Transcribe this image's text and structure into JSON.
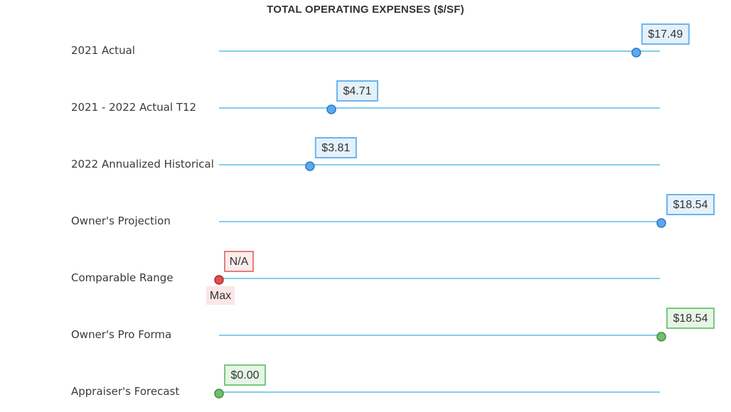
{
  "chart_data": {
    "type": "scatter",
    "title": "TOTAL OPERATING EXPENSES ($/SF)",
    "xlim": [
      0,
      18.54
    ],
    "rows": [
      {
        "label": "2021 Actual",
        "value": 17.49,
        "display": "$17.49",
        "status": "historical"
      },
      {
        "label": "2021 - 2022 Actual T12",
        "value": 4.71,
        "display": "$4.71",
        "status": "historical"
      },
      {
        "label": "2022 Annualized Historical",
        "value": 3.81,
        "display": "$3.81",
        "status": "historical"
      },
      {
        "label": "Owner's Projection",
        "value": 18.54,
        "display": "$18.54",
        "status": "historical"
      },
      {
        "label": "Comparable Range",
        "value": 0,
        "display": "N/A",
        "sublabel": "Max",
        "status": "missing"
      },
      {
        "label": "Owner's Pro Forma",
        "value": 18.54,
        "display": "$18.54",
        "status": "forecast"
      },
      {
        "label": "Appraiser's Forecast",
        "value": 0.0,
        "display": "$0.00",
        "status": "forecast"
      }
    ],
    "colors": {
      "track": "#87ceeb",
      "historical": {
        "dot": "#5aa9f0",
        "dot_stroke": "#2a78c2",
        "box_fill": "#e4f1fb",
        "box_stroke": "#6cb4ec"
      },
      "missing": {
        "dot": "#e05050",
        "dot_stroke": "#b02a2a",
        "box_fill": "#fdecec",
        "box_stroke": "#e08080",
        "sub_fill": "#fde6e6"
      },
      "forecast": {
        "dot": "#6fbf6f",
        "dot_stroke": "#3f8f3f",
        "box_fill": "#e6f5e6",
        "box_stroke": "#7cc77c"
      }
    }
  }
}
